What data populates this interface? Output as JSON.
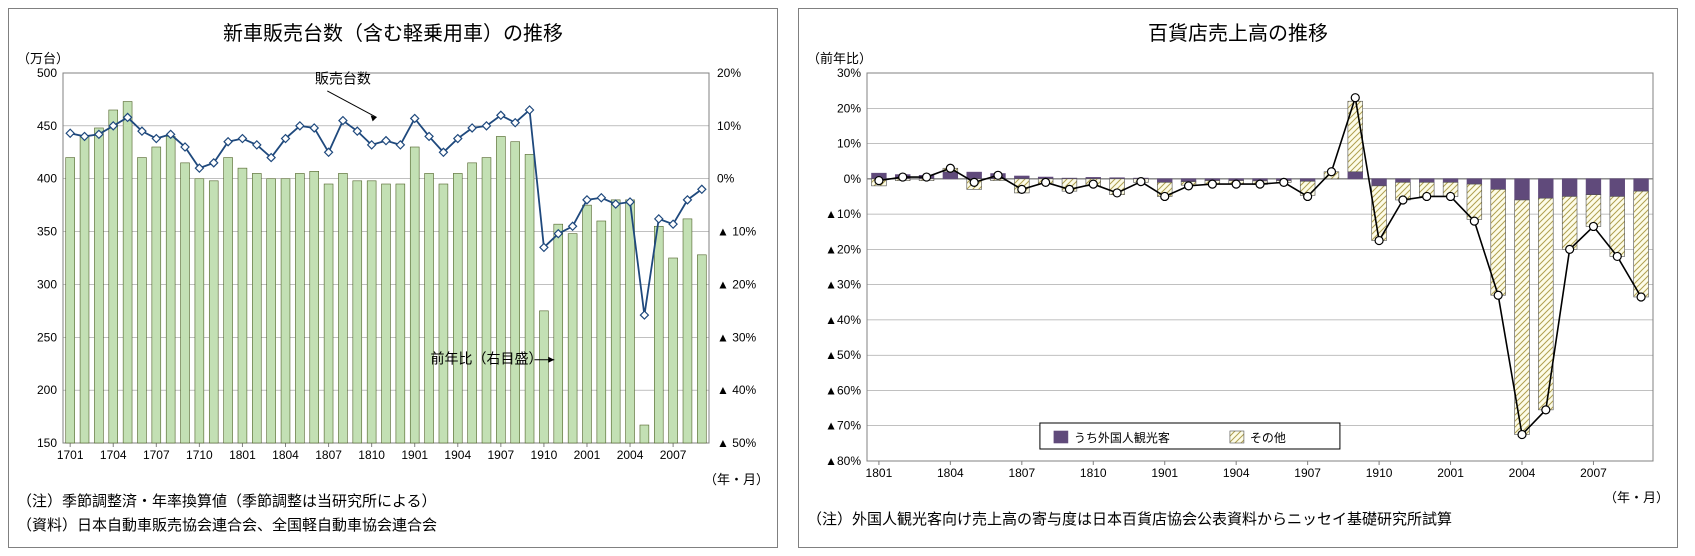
{
  "left_chart": {
    "type": "combo-bar-line",
    "title": "新車販売台数（含む軽乗用車）の推移",
    "y_left_unit": "（万台）",
    "y_right_unit": "",
    "x_unit": "（年・月）",
    "y_left": {
      "min": 150,
      "max": 500,
      "step": 50
    },
    "y_right": {
      "min": -50,
      "max": 20,
      "step": 10,
      "labels": [
        "20%",
        "10%",
        "0%",
        "▲ 10%",
        "▲ 20%",
        "▲ 30%",
        "▲ 40%",
        "▲ 50%"
      ]
    },
    "x_tick_labels": [
      "1701",
      "1704",
      "1707",
      "1710",
      "1801",
      "1804",
      "1807",
      "1810",
      "1901",
      "1904",
      "1907",
      "1910",
      "2001",
      "2004",
      "2007"
    ],
    "categories": [
      "1701",
      "1702",
      "1703",
      "1704",
      "1705",
      "1706",
      "1707",
      "1708",
      "1709",
      "1710",
      "1711",
      "1712",
      "1801",
      "1802",
      "1803",
      "1804",
      "1805",
      "1806",
      "1807",
      "1808",
      "1809",
      "1810",
      "1811",
      "1812",
      "1901",
      "1902",
      "1903",
      "1904",
      "1905",
      "1906",
      "1907",
      "1908",
      "1909",
      "1910",
      "1911",
      "1912",
      "2001",
      "2002",
      "2003",
      "2004",
      "2005",
      "2006",
      "2007",
      "2008",
      "2009"
    ],
    "bars": [
      420,
      440,
      448,
      465,
      473,
      420,
      430,
      440,
      415,
      400,
      398,
      420,
      410,
      405,
      400,
      400,
      405,
      407,
      395,
      405,
      398,
      398,
      395,
      395,
      430,
      405,
      395,
      405,
      415,
      420,
      440,
      435,
      423,
      275,
      357,
      348,
      375,
      360,
      380,
      380,
      167,
      355,
      325,
      362,
      328
    ],
    "line": [
      443,
      440,
      442,
      450,
      458,
      445,
      438,
      442,
      430,
      410,
      415,
      435,
      438,
      432,
      420,
      438,
      450,
      448,
      425,
      455,
      445,
      432,
      436,
      432,
      457,
      440,
      425,
      438,
      448,
      450,
      460,
      453,
      465,
      335,
      348,
      355,
      380,
      382,
      376,
      378,
      271,
      362,
      357,
      380,
      390
    ],
    "annotations": {
      "sales_label": "販売台数",
      "yoy_label": "前年比（右目盛）"
    },
    "notes": [
      "（注）季節調整済・年率換算値（季節調整は当研究所による）",
      "（資料）日本自動車販売協会連合会、全国軽自動車協会連合会"
    ],
    "colors": {
      "bar_fill": "#c3e0b4",
      "bar_stroke": "#4f6228",
      "line": "#1f497d",
      "marker_fill": "#ffffff",
      "grid": "#808080",
      "bg": "#ffffff"
    }
  },
  "right_chart": {
    "type": "stacked-bar-line",
    "title": "百貨店売上高の推移",
    "y_unit": "（前年比）",
    "x_unit": "（年・月）",
    "y": {
      "min": -80,
      "max": 30,
      "step": 10,
      "labels": [
        "30%",
        "20%",
        "10%",
        "0%",
        "▲10%",
        "▲20%",
        "▲30%",
        "▲40%",
        "▲50%",
        "▲60%",
        "▲70%",
        "▲80%"
      ]
    },
    "x_tick_labels": [
      "1801",
      "1804",
      "1807",
      "1810",
      "1901",
      "1904",
      "1907",
      "1910",
      "2001",
      "2004",
      "2007"
    ],
    "categories": [
      "1801",
      "1802",
      "1803",
      "1804",
      "1805",
      "1806",
      "1807",
      "1808",
      "1809",
      "1810",
      "1811",
      "1812",
      "1901",
      "1902",
      "1903",
      "1904",
      "1905",
      "1906",
      "1907",
      "1908",
      "1909",
      "1910",
      "1911",
      "1912",
      "2001",
      "2002",
      "2003",
      "2004",
      "2005",
      "2006",
      "2007",
      "2008",
      "2009"
    ],
    "bars_purple": [
      1.6,
      1.2,
      1.0,
      2.0,
      1.9,
      1.5,
      0.8,
      0.5,
      0.2,
      0.4,
      0.3,
      0.2,
      -1.0,
      -0.8,
      -0.5,
      -0.5,
      -0.6,
      -0.5,
      -0.7,
      0.0,
      2.0,
      -2.0,
      -1.0,
      -1.0,
      -1.0,
      -1.5,
      -3.0,
      -6.0,
      -5.5,
      -5.0,
      -4.5,
      -5.0,
      -3.5
    ],
    "bars_hatch": [
      -2.0,
      -0.5,
      -0.5,
      1.0,
      -3.0,
      -0.5,
      -4.0,
      -1.5,
      -3.5,
      -2.0,
      -4.5,
      -1.0,
      -4.0,
      -1.0,
      -1.0,
      -1.0,
      -1.0,
      -0.5,
      -4.0,
      2.0,
      20.0,
      -15.5,
      -5.0,
      -4.0,
      -4.0,
      -10.0,
      -30.0,
      -66.5,
      -60.0,
      -15.0,
      -9.0,
      -17.0,
      -30.0
    ],
    "line": [
      -0.5,
      0.5,
      0.5,
      3.0,
      -1.0,
      1.0,
      -3.0,
      -1.0,
      -3.0,
      -1.5,
      -4.0,
      -0.8,
      -5.0,
      -2.0,
      -1.5,
      -1.5,
      -1.5,
      -1.0,
      -5.0,
      2.0,
      23.0,
      -17.5,
      -6.0,
      -5.0,
      -5.0,
      -12.0,
      -33.0,
      -72.5,
      -65.5,
      -20.0,
      -13.5,
      -22.0,
      -33.5
    ],
    "legend": {
      "purple": "うち外国人観光客",
      "hatch": "その他"
    },
    "note": "（注）外国人観光客向け売上高の寄与度は日本百貨店協会公表資料からニッセイ基礎研究所試算",
    "colors": {
      "purple": "#604a7b",
      "hatch_bg": "#fdfce8",
      "hatch_line": "#b0a050",
      "line": "#000000",
      "marker_fill": "#ffffff",
      "grid": "#808080",
      "bg": "#ffffff"
    }
  }
}
